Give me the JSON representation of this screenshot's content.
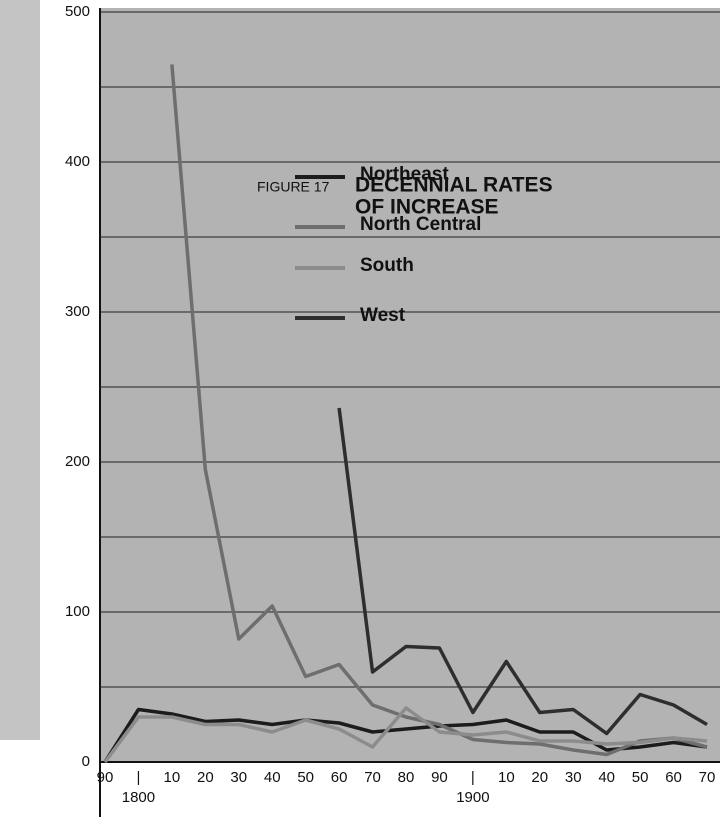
{
  "chart_data": {
    "type": "line",
    "figure_label": "FIGURE 17",
    "title_lines": [
      "DECENNIAL RATES",
      "OF INCREASE"
    ],
    "x": [
      1790,
      1800,
      1810,
      1820,
      1830,
      1840,
      1850,
      1860,
      1870,
      1880,
      1890,
      1900,
      1910,
      1920,
      1930,
      1940,
      1950,
      1960,
      1970
    ],
    "series": [
      {
        "name": "Northeast",
        "color": "#1c1c1c",
        "values": [
          0,
          35,
          32,
          27,
          28,
          25,
          28,
          26,
          20,
          22,
          24,
          25,
          28,
          20,
          20,
          8,
          10,
          13,
          10
        ]
      },
      {
        "name": "North Central",
        "color": "#6e6e6e",
        "values": [
          null,
          null,
          465,
          195,
          82,
          104,
          57,
          65,
          38,
          30,
          25,
          15,
          13,
          12,
          8,
          5,
          14,
          16,
          10
        ]
      },
      {
        "name": "South",
        "color": "#8c8c8c",
        "values": [
          0,
          30,
          30,
          25,
          25,
          20,
          28,
          22,
          10,
          36,
          20,
          18,
          20,
          14,
          14,
          12,
          13,
          16,
          14
        ]
      },
      {
        "name": "West",
        "color": "#2e2e2e",
        "values": [
          null,
          null,
          null,
          null,
          null,
          null,
          null,
          236,
          60,
          77,
          76,
          33,
          67,
          33,
          35,
          19,
          45,
          38,
          25
        ]
      }
    ],
    "xlim": [
      1790,
      1970
    ],
    "xticks": [
      {
        "value": 1790,
        "label": "90"
      },
      {
        "value": 1800,
        "label": "|"
      },
      10,
      20,
      30,
      40,
      50,
      60,
      70,
      80,
      90,
      {
        "value": 1900,
        "label": "|"
      },
      10,
      20,
      30,
      40,
      50,
      60,
      70
    ],
    "century_labels": [
      {
        "value": 1800,
        "label": "1800"
      },
      {
        "value": 1900,
        "label": "1900"
      }
    ],
    "ylim": [
      0,
      500
    ],
    "yticks": [
      0,
      100,
      200,
      300,
      400,
      500
    ],
    "minor_yticks": [
      50,
      150,
      250,
      350,
      450
    ],
    "grid": true
  }
}
